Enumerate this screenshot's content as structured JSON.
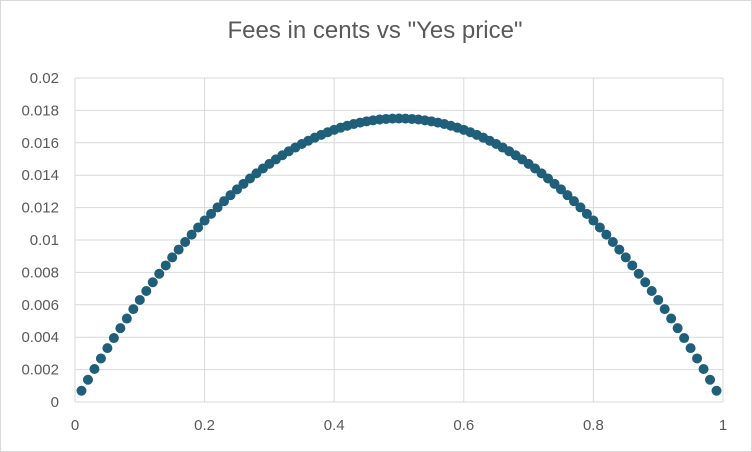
{
  "chart_data": {
    "type": "scatter",
    "title": "Fees in cents vs \"Yes price\"",
    "xlabel": "",
    "ylabel": "",
    "xlim": [
      0,
      1
    ],
    "ylim": [
      0,
      0.02
    ],
    "grid": true,
    "legend": "none",
    "x_ticks": [
      "0",
      "0.2",
      "0.4",
      "0.6",
      "0.8",
      "1"
    ],
    "y_ticks": [
      "0",
      "0.002",
      "0.004",
      "0.006",
      "0.008",
      "0.01",
      "0.012",
      "0.014",
      "0.016",
      "0.018",
      "0.02"
    ],
    "marker_color": "#1f5f7a",
    "series": [
      {
        "x": [
          0.01,
          0.02,
          0.03,
          0.04,
          0.05,
          0.06,
          0.07,
          0.08,
          0.09,
          0.1,
          0.11,
          0.12,
          0.13,
          0.14,
          0.15,
          0.16,
          0.17,
          0.18,
          0.19,
          0.2,
          0.21,
          0.22,
          0.23,
          0.24,
          0.25,
          0.26,
          0.27,
          0.28,
          0.29,
          0.3,
          0.31,
          0.32,
          0.33,
          0.34,
          0.35,
          0.36,
          0.37,
          0.38,
          0.39,
          0.4,
          0.41,
          0.42,
          0.43,
          0.44,
          0.45,
          0.46,
          0.47,
          0.48,
          0.49,
          0.5,
          0.51,
          0.52,
          0.53,
          0.54,
          0.55,
          0.56,
          0.57,
          0.58,
          0.59,
          0.6,
          0.61,
          0.62,
          0.63,
          0.64,
          0.65,
          0.66,
          0.67,
          0.68,
          0.69,
          0.7,
          0.71,
          0.72,
          0.73,
          0.74,
          0.75,
          0.76,
          0.77,
          0.78,
          0.79,
          0.8,
          0.81,
          0.82,
          0.83,
          0.84,
          0.85,
          0.86,
          0.87,
          0.88,
          0.89,
          0.9,
          0.91,
          0.92,
          0.93,
          0.94,
          0.95,
          0.96,
          0.97,
          0.98,
          0.99
        ],
        "values": [
          0.000693,
          0.001372,
          0.002037,
          0.002688,
          0.003325,
          0.003948,
          0.004557,
          0.005152,
          0.005733,
          0.0063,
          0.006853,
          0.007392,
          0.007917,
          0.008428,
          0.008925,
          0.009408,
          0.009877,
          0.010332,
          0.010773,
          0.0112,
          0.011613,
          0.012012,
          0.012397,
          0.012768,
          0.013125,
          0.013468,
          0.013797,
          0.014112,
          0.014413,
          0.0147,
          0.014973,
          0.015232,
          0.015477,
          0.015708,
          0.015925,
          0.016128,
          0.016317,
          0.016492,
          0.016653,
          0.0168,
          0.016933,
          0.017052,
          0.017157,
          0.017248,
          0.017325,
          0.017388,
          0.017437,
          0.017472,
          0.017493,
          0.0175,
          0.017493,
          0.017472,
          0.017437,
          0.017388,
          0.017325,
          0.017248,
          0.017157,
          0.017052,
          0.016933,
          0.0168,
          0.016653,
          0.016492,
          0.016317,
          0.016128,
          0.015925,
          0.015708,
          0.015477,
          0.015232,
          0.014973,
          0.0147,
          0.014413,
          0.014112,
          0.013797,
          0.013468,
          0.013125,
          0.012768,
          0.012397,
          0.012012,
          0.011613,
          0.0112,
          0.010773,
          0.010332,
          0.009877,
          0.009408,
          0.008925,
          0.008428,
          0.007917,
          0.007392,
          0.006853,
          0.0063,
          0.005733,
          0.005152,
          0.004557,
          0.003948,
          0.003325,
          0.002688,
          0.002037,
          0.001372,
          0.000693
        ]
      }
    ]
  }
}
